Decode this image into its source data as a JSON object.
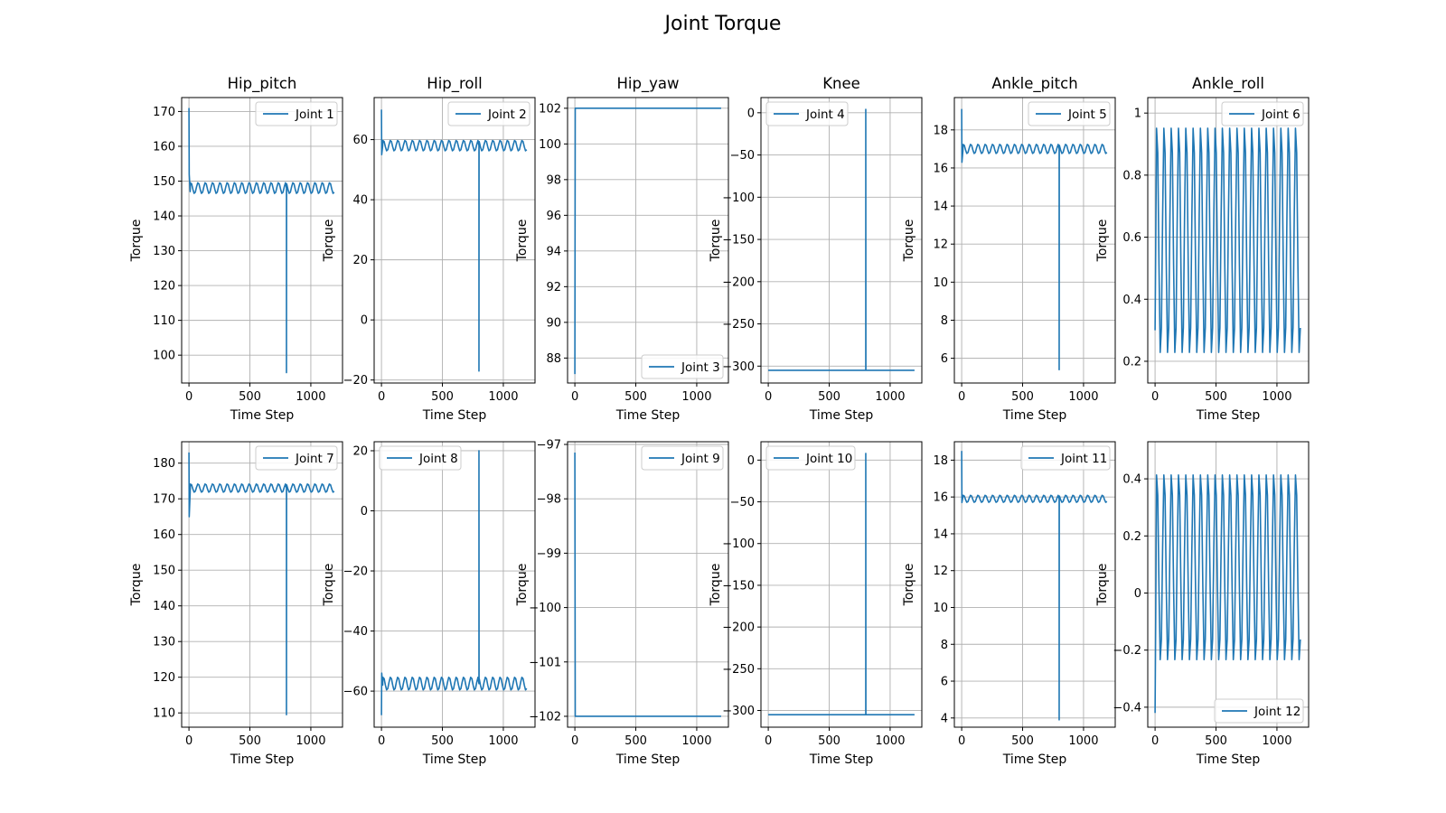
{
  "figure": {
    "title": "Joint Torque",
    "line_color": "#1f77b4"
  },
  "chart_data": [
    {
      "type": "line",
      "title": "Hip_pitch",
      "xlabel": "Time Step",
      "ylabel": "Torque",
      "xlim": [
        -60,
        1260
      ],
      "ylim": [
        92,
        174
      ],
      "xticks": [
        0,
        500,
        1000
      ],
      "yticks": [
        100,
        110,
        120,
        130,
        140,
        150,
        160,
        170
      ],
      "legend": "top-right",
      "grid": true,
      "series": [
        {
          "name": "Joint 1",
          "start": 171,
          "transient": [
            [
              2,
              152
            ],
            [
              10,
              147
            ]
          ],
          "base": 148,
          "amp": 1.6,
          "period": 60,
          "spike_x": 800,
          "spike_y": 95,
          "x_end": 1200
        }
      ]
    },
    {
      "type": "line",
      "title": "Hip_roll",
      "xlabel": "Time Step",
      "ylabel": "Torque",
      "xlim": [
        -60,
        1260
      ],
      "ylim": [
        -21,
        74
      ],
      "xticks": [
        0,
        500,
        1000
      ],
      "yticks": [
        -20,
        0,
        20,
        40,
        60
      ],
      "legend": "top-right",
      "grid": true,
      "series": [
        {
          "name": "Joint 2",
          "start": 70,
          "transient": [
            [
              2,
              55
            ],
            [
              10,
              58
            ]
          ],
          "base": 58,
          "amp": 1.8,
          "period": 60,
          "spike_x": 800,
          "spike_y": -17,
          "x_end": 1200
        }
      ]
    },
    {
      "type": "line",
      "title": "Hip_yaw",
      "xlabel": "Time Step",
      "ylabel": "Torque",
      "xlim": [
        -60,
        1260
      ],
      "ylim": [
        86.6,
        102.6
      ],
      "xticks": [
        0,
        500,
        1000
      ],
      "yticks": [
        88,
        90,
        92,
        94,
        96,
        98,
        100,
        102
      ],
      "legend": "bottom-right",
      "grid": true,
      "series": [
        {
          "name": "Joint 3",
          "start": 87.1,
          "transient": [
            [
              3,
              102
            ]
          ],
          "base": 102,
          "amp": 0,
          "period": 60,
          "spike_x": null,
          "spike_y": null,
          "x_end": 1200
        }
      ]
    },
    {
      "type": "line",
      "title": "Knee",
      "xlabel": "Time Step",
      "ylabel": "Torque",
      "xlim": [
        -60,
        1260
      ],
      "ylim": [
        -320,
        18
      ],
      "xticks": [
        0,
        500,
        1000
      ],
      "yticks": [
        0,
        -50,
        -100,
        -150,
        -200,
        -250,
        -300
      ],
      "legend": "top-left",
      "grid": true,
      "series": [
        {
          "name": "Joint 4",
          "start": -305,
          "transient": [],
          "base": -305,
          "amp": 0,
          "period": 60,
          "spike_x": 800,
          "spike_y": 4,
          "x_end": 1200
        }
      ]
    },
    {
      "type": "line",
      "title": "Ankle_pitch",
      "xlabel": "Time Step",
      "ylabel": "Torque",
      "xlim": [
        -60,
        1260
      ],
      "ylim": [
        4.7,
        19.7
      ],
      "xticks": [
        0,
        500,
        1000
      ],
      "yticks": [
        6,
        8,
        10,
        12,
        14,
        16,
        18
      ],
      "legend": "top-right",
      "grid": true,
      "series": [
        {
          "name": "Joint 5",
          "start": 19.1,
          "transient": [
            [
              2,
              16.3
            ],
            [
              10,
              16.9
            ]
          ],
          "base": 17,
          "amp": 0.25,
          "period": 60,
          "spike_x": 800,
          "spike_y": 5.4,
          "x_end": 1200
        }
      ]
    },
    {
      "type": "line",
      "title": "Ankle_roll",
      "xlabel": "Time Step",
      "ylabel": "Torque",
      "xlim": [
        -60,
        1260
      ],
      "ylim": [
        0.13,
        1.05
      ],
      "xticks": [
        0,
        500,
        1000
      ],
      "yticks": [
        0.2,
        0.4,
        0.6,
        0.8,
        1.0
      ],
      "legend": "top-right",
      "grid": true,
      "series": [
        {
          "name": "Joint 6",
          "start": 0.3,
          "transient": [
            [
              5,
              0.55
            ]
          ],
          "base": 0.59,
          "amp": 0.38,
          "period": 60,
          "spike_x": null,
          "spike_y": null,
          "x_end": 1200
        }
      ]
    },
    {
      "type": "line",
      "title": "",
      "xlabel": "Time Step",
      "ylabel": "Torque",
      "xlim": [
        -60,
        1260
      ],
      "ylim": [
        106,
        186
      ],
      "xticks": [
        0,
        500,
        1000
      ],
      "yticks": [
        110,
        120,
        130,
        140,
        150,
        160,
        170,
        180
      ],
      "legend": "top-right",
      "grid": true,
      "series": [
        {
          "name": "Joint 7",
          "start": 183,
          "transient": [
            [
              2,
              165
            ],
            [
              10,
              172
            ]
          ],
          "base": 173,
          "amp": 1.2,
          "period": 60,
          "spike_x": 800,
          "spike_y": 109.5,
          "x_end": 1200
        }
      ]
    },
    {
      "type": "line",
      "title": "",
      "xlabel": "Time Step",
      "ylabel": "Torque",
      "xlim": [
        -60,
        1260
      ],
      "ylim": [
        -72,
        23
      ],
      "xticks": [
        0,
        500,
        1000
      ],
      "yticks": [
        20,
        0,
        -20,
        -40,
        -60
      ],
      "legend": "top-left",
      "grid": true,
      "series": [
        {
          "name": "Joint 8",
          "start": -68,
          "transient": [
            [
              2,
              -54
            ],
            [
              10,
              -58
            ]
          ],
          "base": -57.5,
          "amp": 2.2,
          "period": 60,
          "spike_x": 800,
          "spike_y": 20,
          "x_end": 1200
        }
      ]
    },
    {
      "type": "line",
      "title": "",
      "xlabel": "Time Step",
      "ylabel": "Torque",
      "xlim": [
        -60,
        1260
      ],
      "ylim": [
        -102.2,
        -96.95
      ],
      "xticks": [
        0,
        500,
        1000
      ],
      "yticks": [
        -97,
        -98,
        -99,
        -100,
        -101,
        -102
      ],
      "legend": "top-right",
      "grid": true,
      "series": [
        {
          "name": "Joint 9",
          "start": -97.15,
          "transient": [
            [
              3,
              -102
            ]
          ],
          "base": -102,
          "amp": 0,
          "period": 60,
          "spike_x": null,
          "spike_y": null,
          "x_end": 1200
        }
      ]
    },
    {
      "type": "line",
      "title": "",
      "xlabel": "Time Step",
      "ylabel": "Torque",
      "xlim": [
        -60,
        1260
      ],
      "ylim": [
        -320,
        22
      ],
      "xticks": [
        0,
        500,
        1000
      ],
      "yticks": [
        0,
        -50,
        -100,
        -150,
        -200,
        -250,
        -300
      ],
      "legend": "top-left",
      "grid": true,
      "series": [
        {
          "name": "Joint 10",
          "start": -305,
          "transient": [],
          "base": -305,
          "amp": 0,
          "period": 60,
          "spike_x": 800,
          "spike_y": 8,
          "x_end": 1200
        }
      ]
    },
    {
      "type": "line",
      "title": "",
      "xlabel": "Time Step",
      "ylabel": "Torque",
      "xlim": [
        -60,
        1260
      ],
      "ylim": [
        3.5,
        19
      ],
      "xticks": [
        0,
        500,
        1000
      ],
      "yticks": [
        4,
        6,
        8,
        10,
        12,
        14,
        16,
        18
      ],
      "legend": "top-right",
      "grid": true,
      "series": [
        {
          "name": "Joint 11",
          "start": 18.5,
          "transient": [
            [
              2,
              15.7
            ],
            [
              10,
              16
            ]
          ],
          "base": 15.9,
          "amp": 0.2,
          "period": 60,
          "spike_x": 800,
          "spike_y": 3.9,
          "x_end": 1200
        }
      ]
    },
    {
      "type": "line",
      "title": "",
      "xlabel": "Time Step",
      "ylabel": "Torque",
      "xlim": [
        -60,
        1260
      ],
      "ylim": [
        -0.47,
        0.53
      ],
      "xticks": [
        0,
        500,
        1000
      ],
      "yticks": [
        -0.4,
        -0.2,
        0.0,
        0.2,
        0.4
      ],
      "legend": "bottom-right",
      "grid": true,
      "series": [
        {
          "name": "Joint 12",
          "start": -0.42,
          "transient": [
            [
              5,
              -0.1
            ]
          ],
          "base": 0.09,
          "amp": 0.34,
          "period": 60,
          "spike_x": null,
          "spike_y": null,
          "x_end": 1200
        }
      ]
    }
  ]
}
